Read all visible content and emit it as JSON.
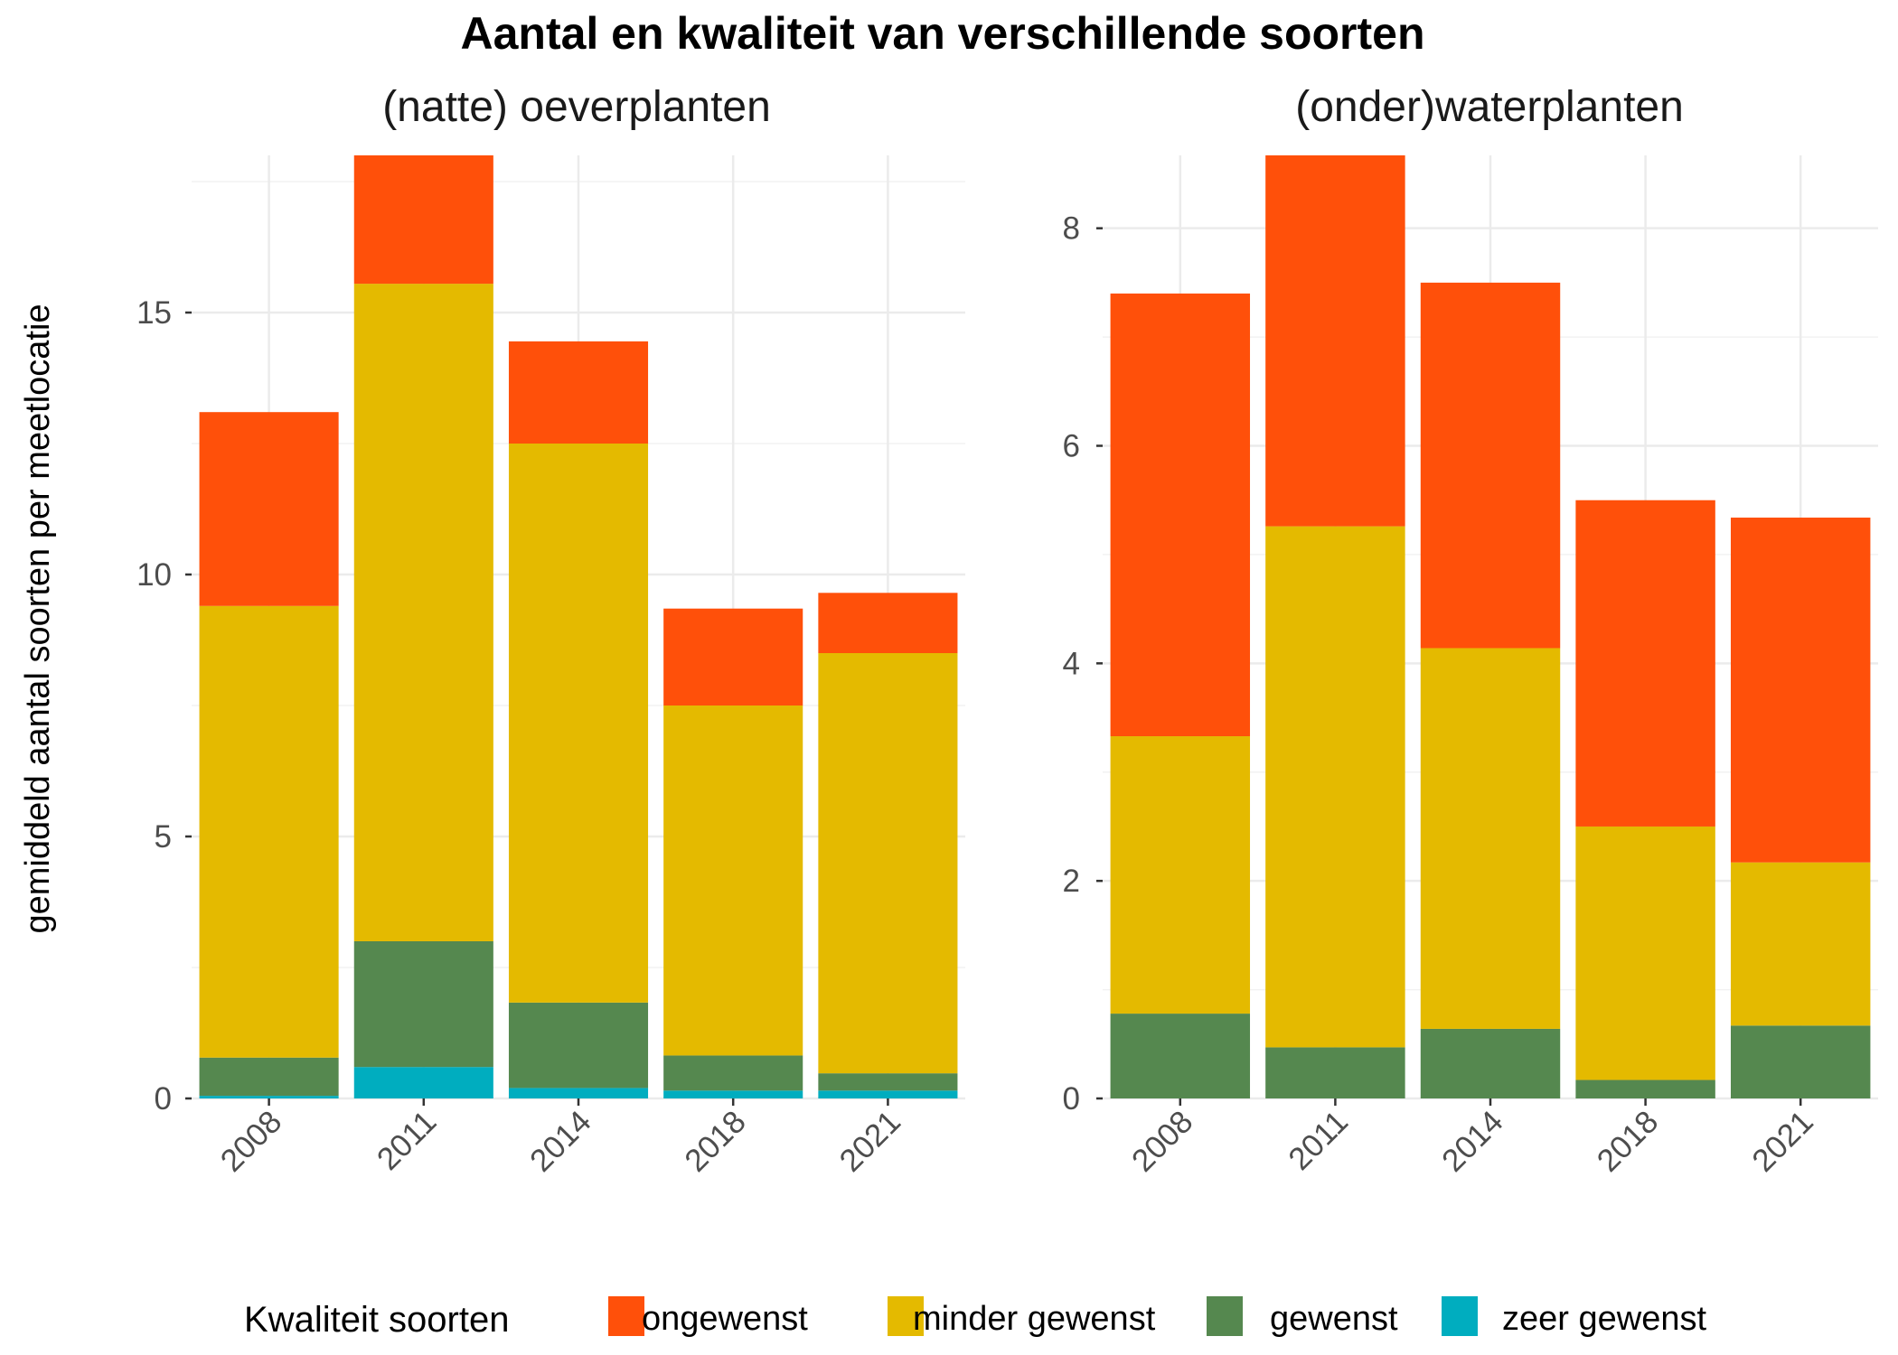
{
  "chart_data": {
    "type": "bar",
    "stacked": true,
    "title": "Aantal en kwaliteit van verschillende soorten",
    "ylabel": "gemiddeld aantal soorten per meetlocatie",
    "xlabel": "",
    "legend": {
      "title": "Kwaliteit soorten",
      "placement": "bottom",
      "items": [
        {
          "name": "ongewenst",
          "color": "#FF500A"
        },
        {
          "name": "minder gewenst",
          "color": "#E4BA00"
        },
        {
          "name": "gewenst",
          "color": "#55884F"
        },
        {
          "name": "zeer gewenst",
          "color": "#00ADBF"
        }
      ]
    },
    "grid": true,
    "panels": [
      {
        "title": "(natte) oeverplanten",
        "categories": [
          "2008",
          "2011",
          "2014",
          "2018",
          "2021"
        ],
        "ylim": [
          0,
          18
        ],
        "yticks": [
          0,
          5,
          10,
          15
        ],
        "series": [
          {
            "name": "zeer gewenst",
            "values": [
              0.05,
              0.6,
              0.2,
              0.15,
              0.15
            ]
          },
          {
            "name": "gewenst",
            "values": [
              0.73,
              2.4,
              1.63,
              0.67,
              0.33
            ]
          },
          {
            "name": "minder gewenst",
            "values": [
              8.62,
              12.55,
              10.67,
              6.68,
              8.02
            ]
          },
          {
            "name": "ongewenst",
            "values": [
              3.7,
              2.45,
              1.95,
              1.85,
              1.15
            ]
          }
        ]
      },
      {
        "title": "(onder)waterplanten",
        "categories": [
          "2008",
          "2011",
          "2014",
          "2018",
          "2021"
        ],
        "ylim": [
          0,
          8.67
        ],
        "yticks": [
          0,
          2,
          4,
          6,
          8
        ],
        "series": [
          {
            "name": "zeer gewenst",
            "values": [
              0,
              0,
              0,
              0,
              0
            ]
          },
          {
            "name": "gewenst",
            "values": [
              0.78,
              0.47,
              0.64,
              0.17,
              0.67
            ]
          },
          {
            "name": "minder gewenst",
            "values": [
              2.55,
              4.79,
              3.5,
              2.33,
              1.5
            ]
          },
          {
            "name": "ongewenst",
            "values": [
              4.07,
              3.41,
              3.36,
              3.0,
              3.17
            ]
          }
        ]
      }
    ]
  }
}
